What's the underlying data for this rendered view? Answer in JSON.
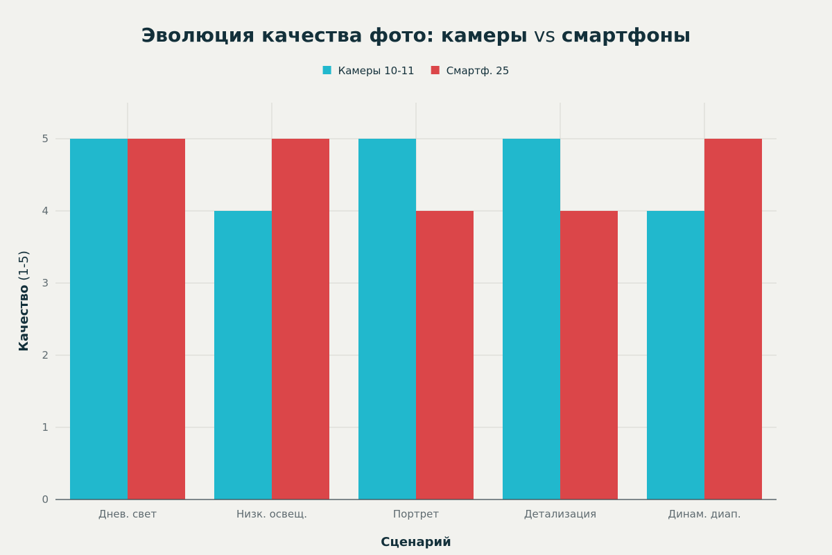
{
  "chart_data": {
    "type": "bar",
    "title_parts": [
      {
        "text": "Эволюция качества фото",
        "bold": true
      },
      {
        "text": ": ",
        "bold": true
      },
      {
        "text": "камеры",
        "bold": true
      },
      {
        "text": " vs ",
        "bold": false
      },
      {
        "text": "смартфоны",
        "bold": true
      }
    ],
    "xlabel": "Сценарий",
    "ylabel_bold": "Качество",
    "ylabel_normal": " (1-5)",
    "categories": [
      "Днев. свет",
      "Низк. освещ.",
      "Портрет",
      "Детализация",
      "Динам. диап."
    ],
    "series": [
      {
        "name": "Камеры 10-11",
        "values": [
          5,
          4,
          5,
          5,
          4
        ],
        "color": "#21b8cd"
      },
      {
        "name": "Смартф. 25",
        "values": [
          5,
          5,
          4,
          4,
          5
        ],
        "color": "#db4649"
      }
    ],
    "ylim": [
      0,
      5.5
    ],
    "yticks": [
      0,
      1,
      2,
      3,
      4,
      5
    ],
    "grid": true,
    "legend_position": "top-center"
  }
}
